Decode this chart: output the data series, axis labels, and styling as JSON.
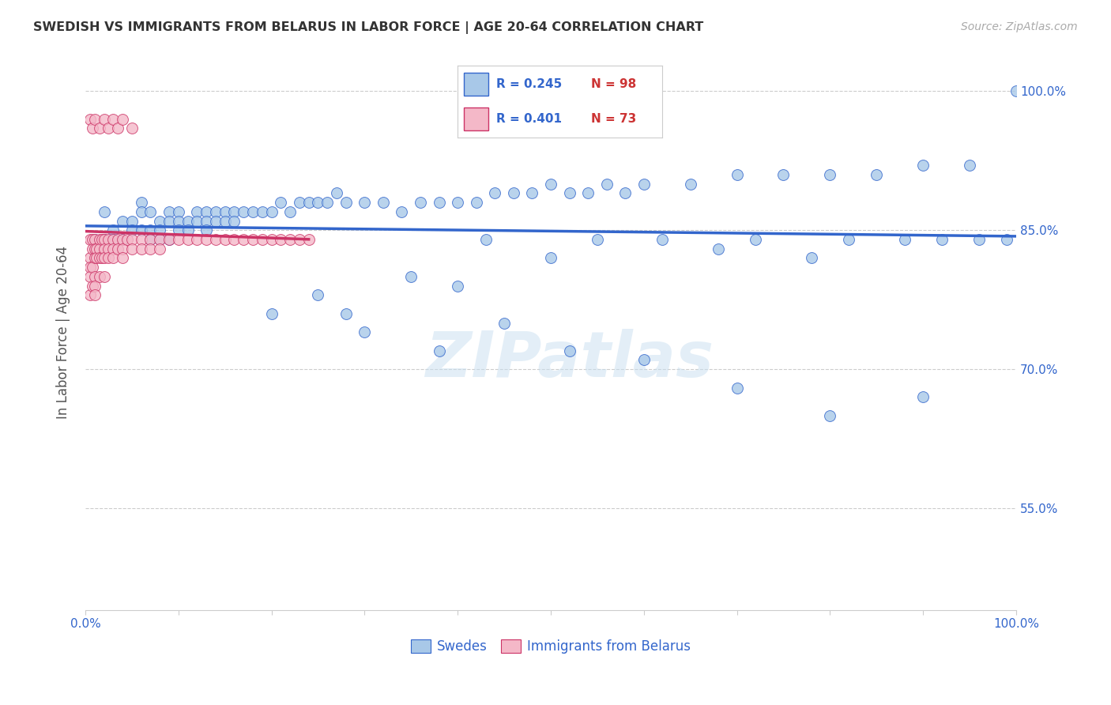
{
  "title": "SWEDISH VS IMMIGRANTS FROM BELARUS IN LABOR FORCE | AGE 20-64 CORRELATION CHART",
  "source": "Source: ZipAtlas.com",
  "ylabel": "In Labor Force | Age 20-64",
  "ytick_labels": [
    "100.0%",
    "85.0%",
    "70.0%",
    "55.0%"
  ],
  "ytick_values": [
    1.0,
    0.85,
    0.7,
    0.55
  ],
  "xlim": [
    0.0,
    1.0
  ],
  "ylim": [
    0.44,
    1.04
  ],
  "blue_color": "#a8c8e8",
  "pink_color": "#f4b8c8",
  "line_blue": "#3366cc",
  "line_pink": "#cc3366",
  "legend_blue_R": "0.245",
  "legend_blue_N": "98",
  "legend_pink_R": "0.401",
  "legend_pink_N": "73",
  "legend_label_blue": "Swedes",
  "legend_label_pink": "Immigrants from Belarus",
  "watermark": "ZIPatlas",
  "title_color": "#333333",
  "blue_text_color": "#3366cc",
  "red_text_color": "#cc3333",
  "swedes_x": [
    0.01,
    0.02,
    0.02,
    0.03,
    0.03,
    0.04,
    0.04,
    0.05,
    0.05,
    0.06,
    0.06,
    0.06,
    0.07,
    0.07,
    0.07,
    0.08,
    0.08,
    0.08,
    0.09,
    0.09,
    0.09,
    0.1,
    0.1,
    0.1,
    0.11,
    0.11,
    0.12,
    0.12,
    0.13,
    0.13,
    0.13,
    0.14,
    0.14,
    0.15,
    0.15,
    0.16,
    0.16,
    0.17,
    0.18,
    0.19,
    0.2,
    0.21,
    0.22,
    0.23,
    0.24,
    0.25,
    0.26,
    0.27,
    0.28,
    0.3,
    0.32,
    0.34,
    0.36,
    0.38,
    0.4,
    0.42,
    0.44,
    0.46,
    0.48,
    0.5,
    0.52,
    0.54,
    0.56,
    0.58,
    0.6,
    0.65,
    0.7,
    0.75,
    0.8,
    0.85,
    0.9,
    0.95,
    1.0,
    0.35,
    0.28,
    0.43,
    0.5,
    0.4,
    0.55,
    0.62,
    0.68,
    0.72,
    0.78,
    0.82,
    0.88,
    0.92,
    0.96,
    0.99,
    0.2,
    0.25,
    0.3,
    0.38,
    0.45,
    0.52,
    0.6,
    0.7,
    0.8,
    0.9
  ],
  "swedes_y": [
    0.84,
    0.87,
    0.84,
    0.85,
    0.84,
    0.86,
    0.84,
    0.86,
    0.85,
    0.88,
    0.87,
    0.85,
    0.87,
    0.85,
    0.84,
    0.86,
    0.85,
    0.84,
    0.87,
    0.86,
    0.84,
    0.87,
    0.86,
    0.85,
    0.86,
    0.85,
    0.87,
    0.86,
    0.87,
    0.86,
    0.85,
    0.87,
    0.86,
    0.87,
    0.86,
    0.87,
    0.86,
    0.87,
    0.87,
    0.87,
    0.87,
    0.88,
    0.87,
    0.88,
    0.88,
    0.88,
    0.88,
    0.89,
    0.88,
    0.88,
    0.88,
    0.87,
    0.88,
    0.88,
    0.88,
    0.88,
    0.89,
    0.89,
    0.89,
    0.9,
    0.89,
    0.89,
    0.9,
    0.89,
    0.9,
    0.9,
    0.91,
    0.91,
    0.91,
    0.91,
    0.92,
    0.92,
    1.0,
    0.8,
    0.76,
    0.84,
    0.82,
    0.79,
    0.84,
    0.84,
    0.83,
    0.84,
    0.82,
    0.84,
    0.84,
    0.84,
    0.84,
    0.84,
    0.76,
    0.78,
    0.74,
    0.72,
    0.75,
    0.72,
    0.71,
    0.68,
    0.65,
    0.67
  ],
  "immigrants_x": [
    0.005,
    0.005,
    0.005,
    0.005,
    0.005,
    0.008,
    0.008,
    0.008,
    0.008,
    0.01,
    0.01,
    0.01,
    0.01,
    0.01,
    0.01,
    0.012,
    0.012,
    0.015,
    0.015,
    0.015,
    0.015,
    0.018,
    0.018,
    0.02,
    0.02,
    0.02,
    0.02,
    0.025,
    0.025,
    0.025,
    0.03,
    0.03,
    0.03,
    0.035,
    0.035,
    0.04,
    0.04,
    0.04,
    0.045,
    0.05,
    0.05,
    0.06,
    0.06,
    0.07,
    0.07,
    0.08,
    0.08,
    0.09,
    0.1,
    0.11,
    0.12,
    0.13,
    0.14,
    0.15,
    0.16,
    0.17,
    0.18,
    0.19,
    0.2,
    0.21,
    0.22,
    0.23,
    0.24,
    0.005,
    0.008,
    0.01,
    0.015,
    0.02,
    0.025,
    0.03,
    0.035,
    0.04,
    0.05
  ],
  "immigrants_y": [
    0.84,
    0.82,
    0.81,
    0.8,
    0.78,
    0.84,
    0.83,
    0.81,
    0.79,
    0.84,
    0.83,
    0.82,
    0.8,
    0.79,
    0.78,
    0.83,
    0.82,
    0.84,
    0.83,
    0.82,
    0.8,
    0.84,
    0.82,
    0.84,
    0.83,
    0.82,
    0.8,
    0.84,
    0.83,
    0.82,
    0.84,
    0.83,
    0.82,
    0.84,
    0.83,
    0.84,
    0.83,
    0.82,
    0.84,
    0.84,
    0.83,
    0.84,
    0.83,
    0.84,
    0.83,
    0.84,
    0.83,
    0.84,
    0.84,
    0.84,
    0.84,
    0.84,
    0.84,
    0.84,
    0.84,
    0.84,
    0.84,
    0.84,
    0.84,
    0.84,
    0.84,
    0.84,
    0.84,
    0.97,
    0.96,
    0.97,
    0.96,
    0.97,
    0.96,
    0.97,
    0.96,
    0.97,
    0.96
  ]
}
